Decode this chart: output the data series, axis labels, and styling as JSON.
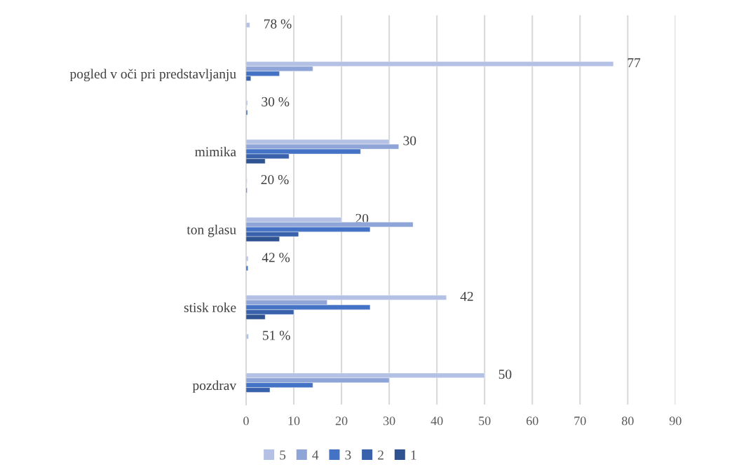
{
  "chart_data": {
    "type": "bar",
    "orientation": "horizontal",
    "categories": [
      null,
      "pogled v oči pri predstavljanju",
      null,
      "mimika",
      null,
      "ton glasu",
      null,
      "stisk roke",
      null,
      "pozdrav"
    ],
    "series": [
      {
        "name": "5",
        "color": "#b4c1e4",
        "values": [
          0.78,
          77,
          0.3,
          30,
          0.2,
          20,
          0.42,
          42,
          0.51,
          50
        ],
        "value_labels": [
          "78 %",
          "77",
          "30 %",
          "30",
          "20 %",
          "20",
          "42 %",
          "42",
          "51 %",
          "50"
        ]
      },
      {
        "name": "4",
        "color": "#8fa5d7",
        "values": [
          null,
          14,
          null,
          32,
          null,
          35,
          null,
          17,
          null,
          30
        ]
      },
      {
        "name": "3",
        "color": "#4472c4",
        "values": [
          null,
          7,
          0.3,
          24,
          0.2,
          26,
          0.4,
          26,
          null,
          14
        ]
      },
      {
        "name": "2",
        "color": "#3a62ac",
        "values": [
          null,
          1,
          null,
          9,
          null,
          11,
          null,
          10,
          null,
          5
        ]
      },
      {
        "name": "1",
        "color": "#2f5290",
        "values": [
          null,
          null,
          null,
          4,
          null,
          7,
          null,
          4,
          null,
          null
        ]
      }
    ],
    "xlim": [
      0,
      90
    ],
    "xticks": [
      0,
      10,
      20,
      30,
      40,
      50,
      60,
      70,
      80,
      90
    ],
    "grid": "x",
    "legend": "bottom"
  }
}
